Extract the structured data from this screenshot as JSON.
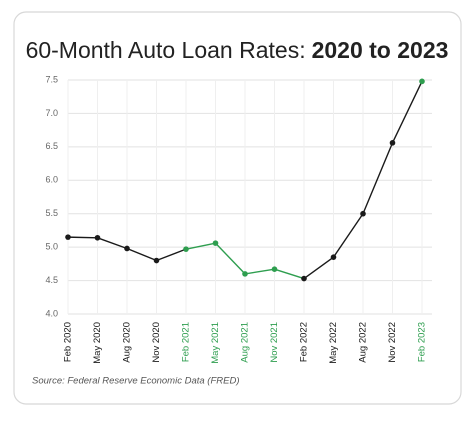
{
  "chart_data": {
    "type": "line",
    "title": "60-Month Auto Loan Rates:",
    "title_highlight": "2020 to 2023",
    "source": "Source: Federal Reserve Economic Data (FRED)",
    "categories": [
      "Feb 2020",
      "May 2020",
      "Aug 2020",
      "Nov 2020",
      "Feb 2021",
      "May 2021",
      "Aug 2021",
      "Nov 2021",
      "Feb 2022",
      "May 2022",
      "Aug 2022",
      "Nov 2022",
      "Feb 2023"
    ],
    "values": [
      5.15,
      5.14,
      4.98,
      4.8,
      4.97,
      5.06,
      4.6,
      4.67,
      4.53,
      4.85,
      5.5,
      6.56,
      7.48
    ],
    "colors": [
      "#1a1a1a",
      "#1a1a1a",
      "#1a1a1a",
      "#1a1a1a",
      "#2e9e4f",
      "#2e9e4f",
      "#2e9e4f",
      "#2e9e4f",
      "#1a1a1a",
      "#1a1a1a",
      "#1a1a1a",
      "#1a1a1a",
      "#2e9e4f"
    ],
    "ylim": [
      4.0,
      7.5
    ],
    "yticks": [
      {
        "value": 4,
        "label": "4.0"
      },
      4.5,
      {
        "value": 5,
        "label": "5.0"
      },
      5.5,
      {
        "value": 6,
        "label": "6.0"
      },
      6.5,
      {
        "value": 7,
        "label": "7.0"
      },
      7.5
    ],
    "grid": true
  }
}
